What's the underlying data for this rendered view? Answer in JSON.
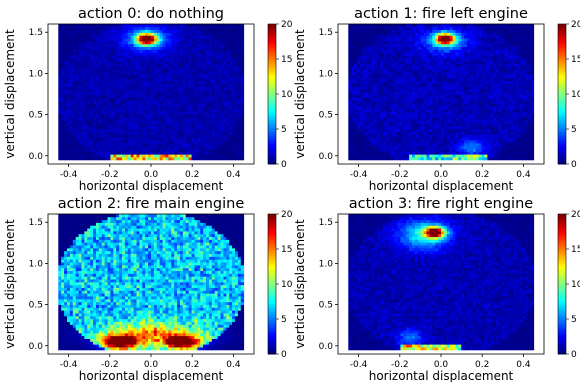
{
  "chart_data": [
    {
      "type": "heatmap",
      "title": "action 0: do nothing",
      "xlabel": "horizontal displacement",
      "ylabel": "vertical displacement",
      "xlim": [
        -0.5,
        0.5
      ],
      "ylim": [
        -0.1,
        1.6
      ],
      "xticks": [
        "-0.4",
        "-0.2",
        "0.0",
        "0.2",
        "0.4"
      ],
      "yticks": [
        "0.0",
        "0.5",
        "1.0",
        "1.5"
      ],
      "colorbar": {
        "min": 0,
        "max": 20,
        "ticks": [
          "0",
          "5",
          "10",
          "15",
          "20"
        ],
        "colormap": "jet"
      },
      "hotspots": [
        {
          "x": -0.02,
          "y": 1.42,
          "value": 20
        },
        {
          "x": 0.0,
          "y": -0.01,
          "value": 14
        }
      ]
    },
    {
      "type": "heatmap",
      "title": "action 1: fire left engine",
      "xlabel": "horizontal displacement",
      "ylabel": "vertical displacement",
      "xlim": [
        -0.5,
        0.5
      ],
      "ylim": [
        -0.1,
        1.6
      ],
      "xticks": [
        "-0.4",
        "-0.2",
        "0.0",
        "0.2",
        "0.4"
      ],
      "yticks": [
        "0.0",
        "0.5",
        "1.0",
        "1.5"
      ],
      "colorbar": {
        "min": 0,
        "max": 20,
        "ticks": [
          "0",
          "5",
          "10",
          "15",
          "20"
        ],
        "colormap": "jet"
      },
      "hotspots": [
        {
          "x": 0.02,
          "y": 1.42,
          "value": 20
        },
        {
          "x": 0.05,
          "y": -0.01,
          "value": 10
        }
      ]
    },
    {
      "type": "heatmap",
      "title": "action 2: fire main engine",
      "xlabel": "horizontal displacement",
      "ylabel": "vertical displacement",
      "xlim": [
        -0.5,
        0.5
      ],
      "ylim": [
        -0.1,
        1.6
      ],
      "xticks": [
        "-0.4",
        "-0.2",
        "0.0",
        "0.2",
        "0.4"
      ],
      "yticks": [
        "0.0",
        "0.5",
        "1.0",
        "1.5"
      ],
      "colorbar": {
        "min": 0,
        "max": 20,
        "ticks": [
          "0",
          "5",
          "10",
          "15",
          "20"
        ],
        "colormap": "jet"
      },
      "hotspots": [
        {
          "x": -0.15,
          "y": 0.05,
          "value": 20
        },
        {
          "x": 0.15,
          "y": 0.05,
          "value": 20
        }
      ]
    },
    {
      "type": "heatmap",
      "title": "action 3: fire right engine",
      "xlabel": "horizontal displacement",
      "ylabel": "vertical displacement",
      "xlim": [
        -0.5,
        0.5
      ],
      "ylim": [
        -0.1,
        1.6
      ],
      "xticks": [
        "-0.4",
        "-0.2",
        "0.0",
        "0.2",
        "0.4"
      ],
      "yticks": [
        "0.0",
        "0.5",
        "1.0",
        "1.5"
      ],
      "colorbar": {
        "min": 0,
        "max": 20,
        "ticks": [
          "0",
          "5",
          "10",
          "15",
          "20"
        ],
        "colormap": "jet"
      },
      "hotspots": [
        {
          "x": -0.03,
          "y": 1.38,
          "value": 20
        },
        {
          "x": -0.05,
          "y": -0.01,
          "value": 12
        }
      ]
    }
  ]
}
